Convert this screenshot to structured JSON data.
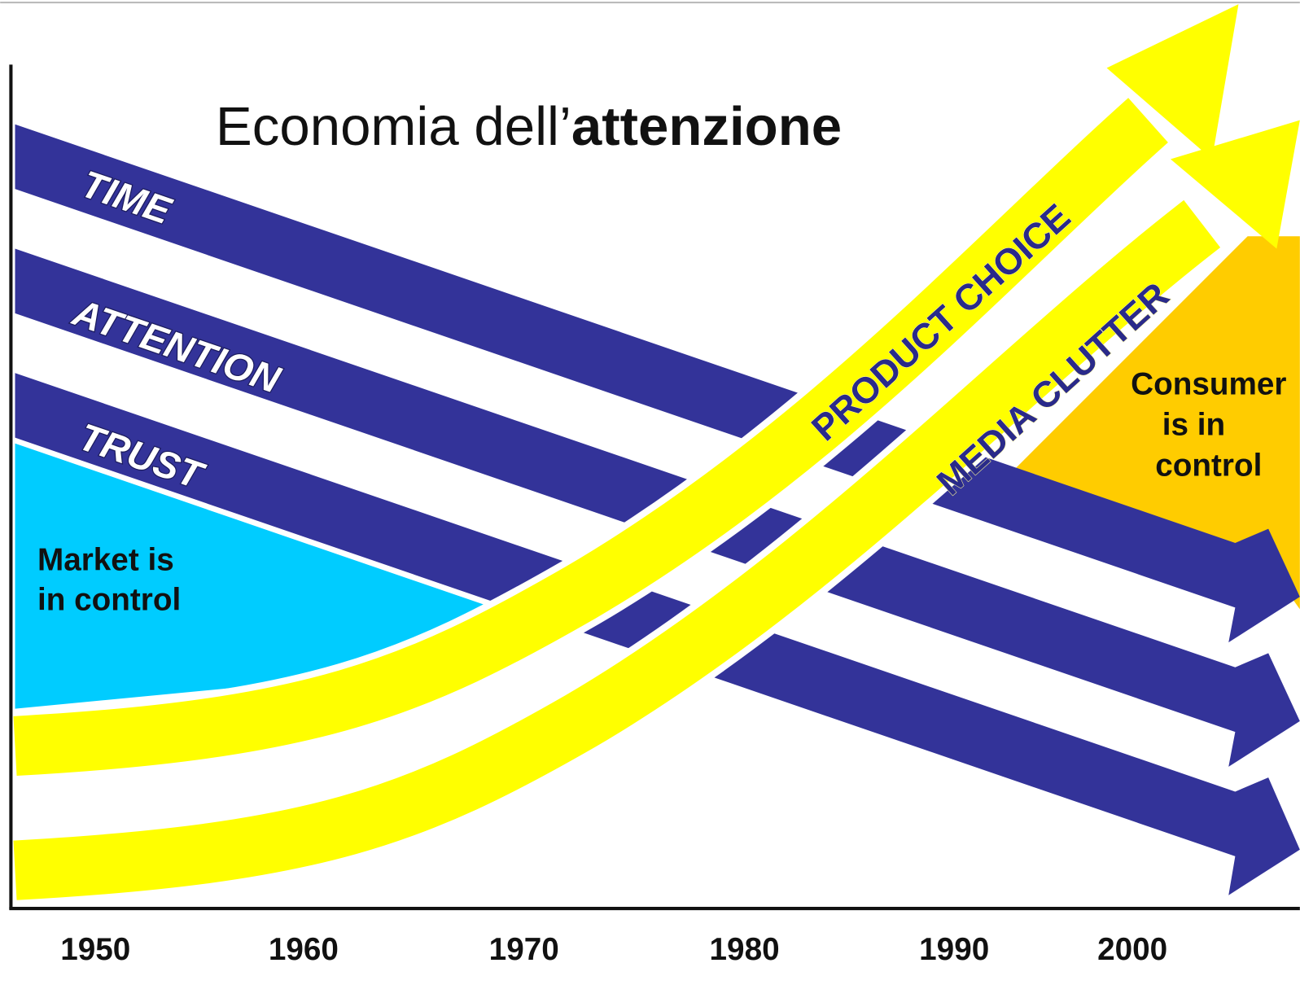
{
  "title": {
    "regular": "Economia dell’",
    "bold": "attenzione"
  },
  "bands": [
    {
      "label": "TIME"
    },
    {
      "label": "ATTENTION"
    },
    {
      "label": "TRUST"
    }
  ],
  "arrows": [
    {
      "label": "PRODUCT CHOICE"
    },
    {
      "label": "MEDIA CLUTTER"
    }
  ],
  "regions": [
    {
      "lines": [
        "Market is",
        "in control"
      ]
    },
    {
      "lines": [
        "Consumer",
        "is in",
        "control"
      ]
    }
  ],
  "x_axis": {
    "labels": [
      "1950",
      "1960",
      "1970",
      "1980",
      "1990",
      "2000"
    ]
  }
}
